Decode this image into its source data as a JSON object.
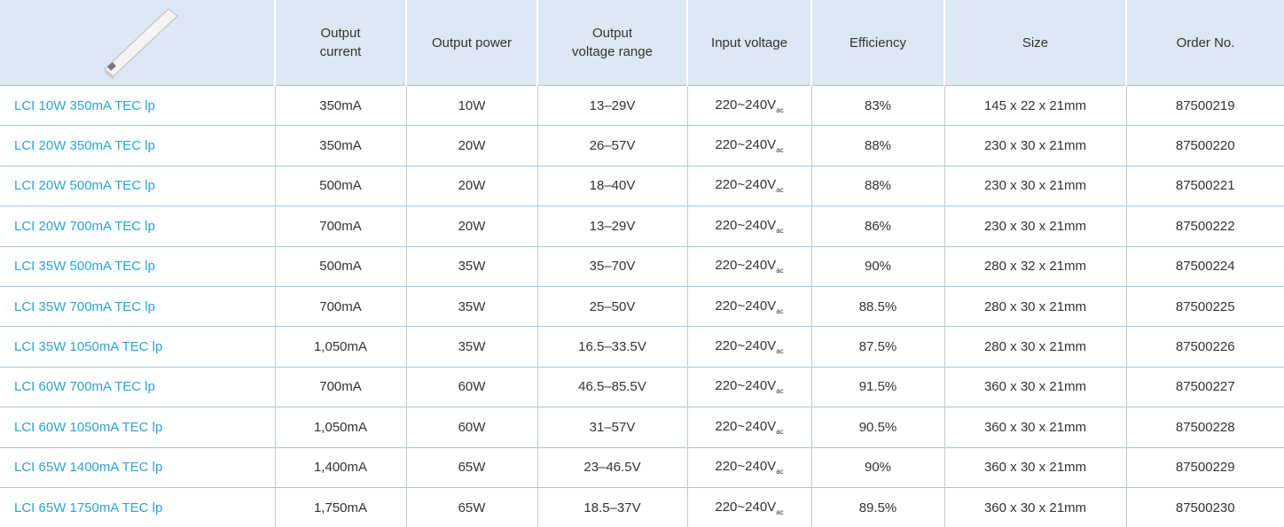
{
  "table": {
    "header": [
      [
        "Output",
        "current"
      ],
      [
        "Output power"
      ],
      [
        "Output",
        "voltage range"
      ],
      [
        "Input voltage"
      ],
      [
        "Efficiency"
      ],
      [
        "Size"
      ],
      [
        "Order No."
      ]
    ],
    "rows": [
      {
        "product": "LCI 10W 350mA TEC lp",
        "current": "350mA",
        "power": "10W",
        "voltage_range": "13–29V",
        "input_voltage": "220~240V",
        "input_sub": "ac",
        "efficiency": "83%",
        "size": "145 x 22 x 21mm",
        "order": "87500219"
      },
      {
        "product": "LCI 20W 350mA TEC lp",
        "current": "350mA",
        "power": "20W",
        "voltage_range": "26–57V",
        "input_voltage": "220~240V",
        "input_sub": "ac",
        "efficiency": "88%",
        "size": "230 x 30 x 21mm",
        "order": "87500220"
      },
      {
        "product": "LCI 20W 500mA TEC lp",
        "current": "500mA",
        "power": "20W",
        "voltage_range": "18–40V",
        "input_voltage": "220~240V",
        "input_sub": "ac",
        "efficiency": "88%",
        "size": "230 x 30 x 21mm",
        "order": "87500221"
      },
      {
        "product": "LCI 20W 700mA TEC lp",
        "current": "700mA",
        "power": "20W",
        "voltage_range": "13–29V",
        "input_voltage": "220~240V",
        "input_sub": "ac",
        "efficiency": "86%",
        "size": "230 x 30 x 21mm",
        "order": "87500222"
      },
      {
        "product": "LCI 35W 500mA TEC lp",
        "current": "500mA",
        "power": "35W",
        "voltage_range": "35–70V",
        "input_voltage": "220~240V",
        "input_sub": "ac",
        "efficiency": "90%",
        "size": "280 x 32 x 21mm",
        "order": "87500224"
      },
      {
        "product": "LCI 35W 700mA TEC lp",
        "current": "700mA",
        "power": "35W",
        "voltage_range": "25–50V",
        "input_voltage": "220~240V",
        "input_sub": "ac",
        "efficiency": "88.5%",
        "size": "280 x 30 x 21mm",
        "order": "87500225"
      },
      {
        "product": "LCI 35W 1050mA TEC lp",
        "current": "1,050mA",
        "power": "35W",
        "voltage_range": "16.5–33.5V",
        "input_voltage": "220~240V",
        "input_sub": "ac",
        "efficiency": "87.5%",
        "size": "280 x 30 x 21mm",
        "order": "87500226"
      },
      {
        "product": "LCI 60W 700mA TEC lp",
        "current": "700mA",
        "power": "60W",
        "voltage_range": "46.5–85.5V",
        "input_voltage": "220~240V",
        "input_sub": "ac",
        "efficiency": "91.5%",
        "size": "360 x 30 x 21mm",
        "order": "87500227"
      },
      {
        "product": "LCI 60W 1050mA TEC lp",
        "current": "1,050mA",
        "power": "60W",
        "voltage_range": "31–57V",
        "input_voltage": "220~240V",
        "input_sub": "ac",
        "efficiency": "90.5%",
        "size": "360 x 30 x 21mm",
        "order": "87500228"
      },
      {
        "product": "LCI 65W 1400mA TEC lp",
        "current": "1,400mA",
        "power": "65W",
        "voltage_range": "23–46.5V",
        "input_voltage": "220~240V",
        "input_sub": "ac",
        "efficiency": "90%",
        "size": "360 x 30 x 21mm",
        "order": "87500229"
      },
      {
        "product": "LCI 65W 1750mA TEC lp",
        "current": "1,750mA",
        "power": "65W",
        "voltage_range": "18.5–37V",
        "input_voltage": "220~240V",
        "input_sub": "ac",
        "efficiency": "89.5%",
        "size": "360 x 30 x 21mm",
        "order": "87500230"
      }
    ]
  }
}
